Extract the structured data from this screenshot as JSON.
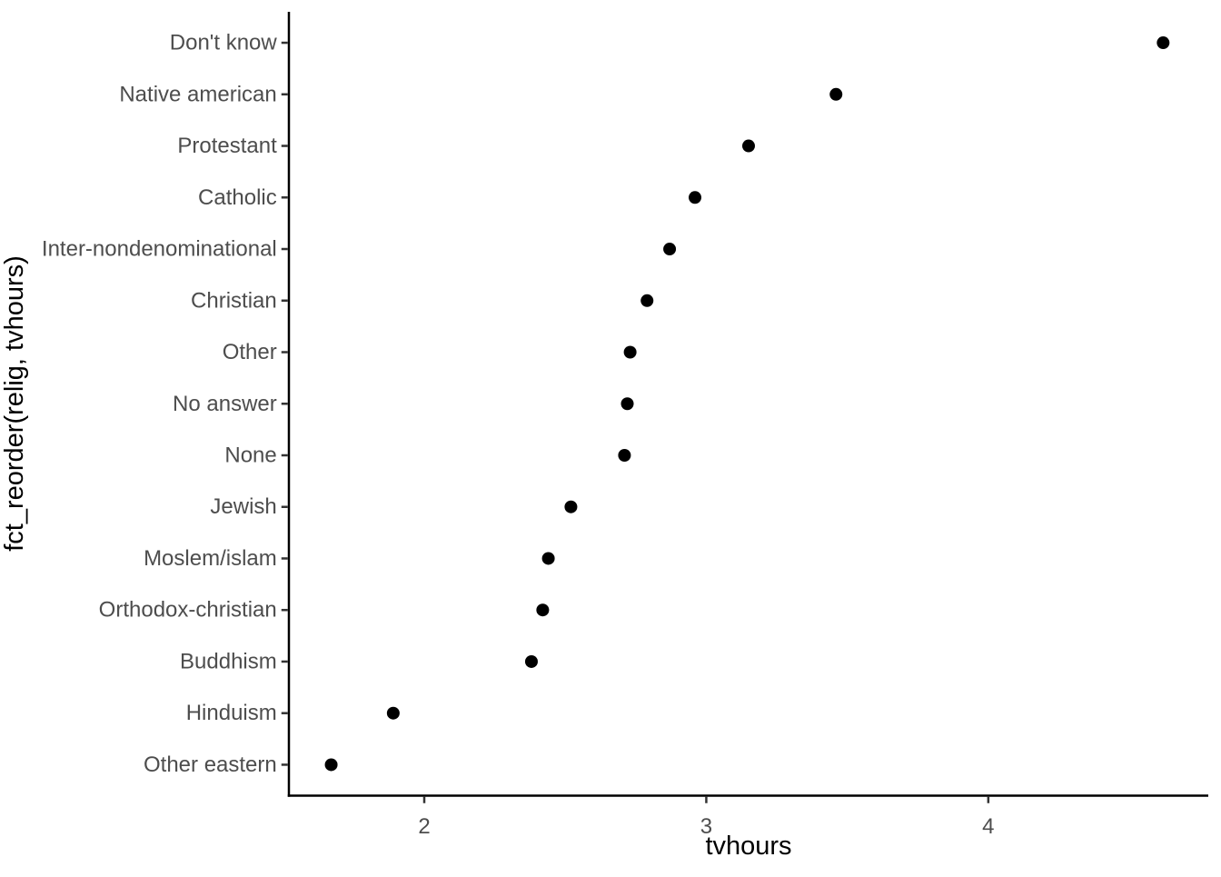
{
  "figure": {
    "background": "#FFFFFF"
  },
  "chart_data": {
    "type": "scatter",
    "title": "",
    "xlabel": "tvhours",
    "ylabel": "fct_reorder(relig, tvhours)",
    "categories": [
      "Don't know",
      "Native american",
      "Protestant",
      "Catholic",
      "Inter-nondenominational",
      "Christian",
      "Other",
      "No answer",
      "None",
      "Jewish",
      "Moslem/islam",
      "Orthodox-christian",
      "Buddhism",
      "Hinduism",
      "Other eastern"
    ],
    "values": [
      4.62,
      3.46,
      3.15,
      2.96,
      2.87,
      2.79,
      2.73,
      2.72,
      2.71,
      2.52,
      2.44,
      2.42,
      2.38,
      1.89,
      1.67
    ],
    "x_ticks": [
      2,
      3,
      4
    ],
    "xlim": [
      1.52,
      4.78
    ],
    "grid": false,
    "legend": false,
    "colors": {
      "point": "#000000",
      "axis_line": "#000000",
      "tick_mark": "#333333",
      "tick_label": "#4D4D4D",
      "axis_title": "#000000"
    }
  }
}
